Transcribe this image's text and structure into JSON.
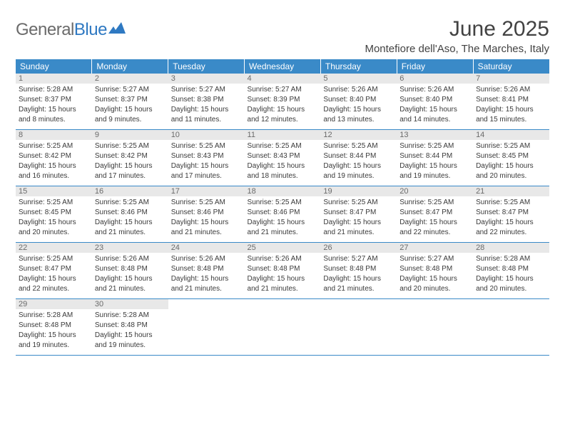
{
  "logo": {
    "text_part1": "General",
    "text_part2": "Blue",
    "color_gray": "#6b6b6b",
    "color_blue": "#2f79c2"
  },
  "title": "June 2025",
  "location": "Montefiore dell'Aso, The Marches, Italy",
  "header_bg": "#3a8ac8",
  "header_fg": "#ffffff",
  "day_number_bg": "#e8e8e8",
  "border_color": "#3a8ac8",
  "weekdays": [
    "Sunday",
    "Monday",
    "Tuesday",
    "Wednesday",
    "Thursday",
    "Friday",
    "Saturday"
  ],
  "days": [
    {
      "n": 1,
      "sunrise": "5:28 AM",
      "sunset": "8:37 PM",
      "daylight": "15 hours and 8 minutes."
    },
    {
      "n": 2,
      "sunrise": "5:27 AM",
      "sunset": "8:37 PM",
      "daylight": "15 hours and 9 minutes."
    },
    {
      "n": 3,
      "sunrise": "5:27 AM",
      "sunset": "8:38 PM",
      "daylight": "15 hours and 11 minutes."
    },
    {
      "n": 4,
      "sunrise": "5:27 AM",
      "sunset": "8:39 PM",
      "daylight": "15 hours and 12 minutes."
    },
    {
      "n": 5,
      "sunrise": "5:26 AM",
      "sunset": "8:40 PM",
      "daylight": "15 hours and 13 minutes."
    },
    {
      "n": 6,
      "sunrise": "5:26 AM",
      "sunset": "8:40 PM",
      "daylight": "15 hours and 14 minutes."
    },
    {
      "n": 7,
      "sunrise": "5:26 AM",
      "sunset": "8:41 PM",
      "daylight": "15 hours and 15 minutes."
    },
    {
      "n": 8,
      "sunrise": "5:25 AM",
      "sunset": "8:42 PM",
      "daylight": "15 hours and 16 minutes."
    },
    {
      "n": 9,
      "sunrise": "5:25 AM",
      "sunset": "8:42 PM",
      "daylight": "15 hours and 17 minutes."
    },
    {
      "n": 10,
      "sunrise": "5:25 AM",
      "sunset": "8:43 PM",
      "daylight": "15 hours and 17 minutes."
    },
    {
      "n": 11,
      "sunrise": "5:25 AM",
      "sunset": "8:43 PM",
      "daylight": "15 hours and 18 minutes."
    },
    {
      "n": 12,
      "sunrise": "5:25 AM",
      "sunset": "8:44 PM",
      "daylight": "15 hours and 19 minutes."
    },
    {
      "n": 13,
      "sunrise": "5:25 AM",
      "sunset": "8:44 PM",
      "daylight": "15 hours and 19 minutes."
    },
    {
      "n": 14,
      "sunrise": "5:25 AM",
      "sunset": "8:45 PM",
      "daylight": "15 hours and 20 minutes."
    },
    {
      "n": 15,
      "sunrise": "5:25 AM",
      "sunset": "8:45 PM",
      "daylight": "15 hours and 20 minutes."
    },
    {
      "n": 16,
      "sunrise": "5:25 AM",
      "sunset": "8:46 PM",
      "daylight": "15 hours and 21 minutes."
    },
    {
      "n": 17,
      "sunrise": "5:25 AM",
      "sunset": "8:46 PM",
      "daylight": "15 hours and 21 minutes."
    },
    {
      "n": 18,
      "sunrise": "5:25 AM",
      "sunset": "8:46 PM",
      "daylight": "15 hours and 21 minutes."
    },
    {
      "n": 19,
      "sunrise": "5:25 AM",
      "sunset": "8:47 PM",
      "daylight": "15 hours and 21 minutes."
    },
    {
      "n": 20,
      "sunrise": "5:25 AM",
      "sunset": "8:47 PM",
      "daylight": "15 hours and 22 minutes."
    },
    {
      "n": 21,
      "sunrise": "5:25 AM",
      "sunset": "8:47 PM",
      "daylight": "15 hours and 22 minutes."
    },
    {
      "n": 22,
      "sunrise": "5:25 AM",
      "sunset": "8:47 PM",
      "daylight": "15 hours and 22 minutes."
    },
    {
      "n": 23,
      "sunrise": "5:26 AM",
      "sunset": "8:48 PM",
      "daylight": "15 hours and 21 minutes."
    },
    {
      "n": 24,
      "sunrise": "5:26 AM",
      "sunset": "8:48 PM",
      "daylight": "15 hours and 21 minutes."
    },
    {
      "n": 25,
      "sunrise": "5:26 AM",
      "sunset": "8:48 PM",
      "daylight": "15 hours and 21 minutes."
    },
    {
      "n": 26,
      "sunrise": "5:27 AM",
      "sunset": "8:48 PM",
      "daylight": "15 hours and 21 minutes."
    },
    {
      "n": 27,
      "sunrise": "5:27 AM",
      "sunset": "8:48 PM",
      "daylight": "15 hours and 20 minutes."
    },
    {
      "n": 28,
      "sunrise": "5:28 AM",
      "sunset": "8:48 PM",
      "daylight": "15 hours and 20 minutes."
    },
    {
      "n": 29,
      "sunrise": "5:28 AM",
      "sunset": "8:48 PM",
      "daylight": "15 hours and 19 minutes."
    },
    {
      "n": 30,
      "sunrise": "5:28 AM",
      "sunset": "8:48 PM",
      "daylight": "15 hours and 19 minutes."
    }
  ],
  "labels": {
    "sunrise": "Sunrise:",
    "sunset": "Sunset:",
    "daylight": "Daylight:"
  }
}
